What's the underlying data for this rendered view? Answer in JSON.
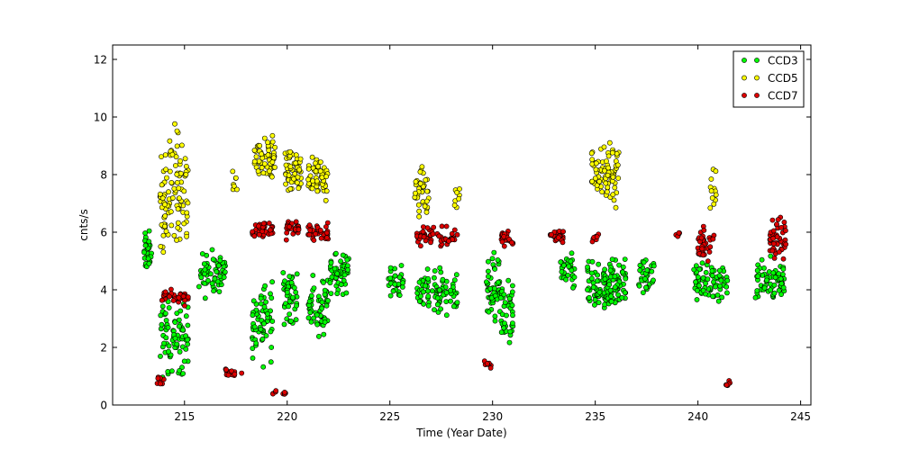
{
  "chart_data": {
    "type": "scatter",
    "xlabel": "Time (Year Date)",
    "ylabel": "cnts/s",
    "xlim": [
      211.5,
      245.5
    ],
    "ylim": [
      0,
      12.5
    ],
    "xticks": [
      215,
      220,
      225,
      230,
      235,
      240,
      245
    ],
    "yticks": [
      0,
      2,
      4,
      6,
      8,
      10,
      12
    ],
    "grid": false,
    "legend_position": "top-right",
    "series": [
      {
        "name": "CCD3",
        "color": "#00ff00",
        "clusters": [
          {
            "x": [
              213.0,
              213.4
            ],
            "y": [
              4.3,
              6.3
            ],
            "density": 1.0
          },
          {
            "x": [
              213.8,
              215.2
            ],
            "y": [
              0.5,
              4.2
            ],
            "density": 0.9
          },
          {
            "x": [
              215.7,
              217.0
            ],
            "y": [
              3.5,
              5.6
            ],
            "density": 1.0
          },
          {
            "x": [
              218.3,
              219.3
            ],
            "y": [
              1.0,
              5.0
            ],
            "density": 0.8
          },
          {
            "x": [
              219.8,
              220.5
            ],
            "y": [
              2.2,
              5.3
            ],
            "density": 0.8
          },
          {
            "x": [
              221.0,
              222.0
            ],
            "y": [
              2.2,
              4.8
            ],
            "density": 0.9
          },
          {
            "x": [
              222.0,
              223.0
            ],
            "y": [
              3.6,
              5.6
            ],
            "density": 1.0
          },
          {
            "x": [
              224.9,
              225.7
            ],
            "y": [
              3.6,
              5.0
            ],
            "density": 0.8
          },
          {
            "x": [
              226.3,
              228.3
            ],
            "y": [
              2.8,
              5.0
            ],
            "density": 1.0
          },
          {
            "x": [
              229.7,
              230.5
            ],
            "y": [
              2.5,
              5.5
            ],
            "density": 0.9
          },
          {
            "x": [
              230.4,
              231.0
            ],
            "y": [
              1.5,
              5.0
            ],
            "density": 0.7
          },
          {
            "x": [
              233.3,
              234.0
            ],
            "y": [
              3.6,
              5.5
            ],
            "density": 0.7
          },
          {
            "x": [
              234.6,
              235.6
            ],
            "y": [
              2.8,
              5.3
            ],
            "density": 1.0
          },
          {
            "x": [
              235.6,
              236.5
            ],
            "y": [
              2.8,
              5.5
            ],
            "density": 1.0
          },
          {
            "x": [
              237.1,
              237.9
            ],
            "y": [
              3.5,
              5.5
            ],
            "density": 0.7
          },
          {
            "x": [
              239.8,
              241.5
            ],
            "y": [
              3.3,
              5.2
            ],
            "density": 1.0
          },
          {
            "x": [
              242.8,
              244.2
            ],
            "y": [
              3.3,
              5.3
            ],
            "density": 1.0
          }
        ]
      },
      {
        "name": "CCD5",
        "color": "#ffff00",
        "clusters": [
          {
            "x": [
              213.8,
              215.2
            ],
            "y": [
              4.5,
              10.2
            ],
            "density": 1.0
          },
          {
            "x": [
              217.3,
              217.6
            ],
            "y": [
              7.0,
              8.3
            ],
            "density": 0.3
          },
          {
            "x": [
              218.4,
              219.4
            ],
            "y": [
              7.5,
              9.8
            ],
            "density": 1.0
          },
          {
            "x": [
              219.9,
              220.7
            ],
            "y": [
              6.9,
              9.5
            ],
            "density": 1.0
          },
          {
            "x": [
              221.0,
              222.0
            ],
            "y": [
              6.8,
              8.9
            ],
            "density": 1.0
          },
          {
            "x": [
              226.2,
              226.9
            ],
            "y": [
              6.1,
              8.6
            ],
            "density": 0.8
          },
          {
            "x": [
              228.1,
              228.4
            ],
            "y": [
              6.5,
              8.0
            ],
            "density": 0.3
          },
          {
            "x": [
              234.8,
              236.2
            ],
            "y": [
              6.5,
              9.7
            ],
            "density": 1.0
          },
          {
            "x": [
              240.6,
              240.9
            ],
            "y": [
              6.2,
              8.4
            ],
            "density": 0.4
          }
        ]
      },
      {
        "name": "CCD7",
        "color": "#dd0000",
        "clusters": [
          {
            "x": [
              213.6,
              214.0
            ],
            "y": [
              0.6,
              1.2
            ],
            "density": 0.5
          },
          {
            "x": [
              213.9,
              215.2
            ],
            "y": [
              3.4,
              4.1
            ],
            "density": 1.0
          },
          {
            "x": [
              217.0,
              217.8
            ],
            "y": [
              0.9,
              1.4
            ],
            "density": 0.6
          },
          {
            "x": [
              218.3,
              219.3
            ],
            "y": [
              5.7,
              6.5
            ],
            "density": 1.0
          },
          {
            "x": [
              219.3,
              220.0
            ],
            "y": [
              0.3,
              0.6
            ],
            "density": 0.5
          },
          {
            "x": [
              219.9,
              220.6
            ],
            "y": [
              5.6,
              6.6
            ],
            "density": 1.0
          },
          {
            "x": [
              221.0,
              222.0
            ],
            "y": [
              5.6,
              6.4
            ],
            "density": 1.0
          },
          {
            "x": [
              226.3,
              228.3
            ],
            "y": [
              5.4,
              6.3
            ],
            "density": 1.0
          },
          {
            "x": [
              229.6,
              230.0
            ],
            "y": [
              1.2,
              1.6
            ],
            "density": 0.5
          },
          {
            "x": [
              230.4,
              231.0
            ],
            "y": [
              5.4,
              6.2
            ],
            "density": 0.9
          },
          {
            "x": [
              232.8,
              233.5
            ],
            "y": [
              5.5,
              6.2
            ],
            "density": 0.9
          },
          {
            "x": [
              234.8,
              235.2
            ],
            "y": [
              5.5,
              6.1
            ],
            "density": 0.5
          },
          {
            "x": [
              238.9,
              239.1
            ],
            "y": [
              5.6,
              6.2
            ],
            "density": 0.3
          },
          {
            "x": [
              240.0,
              240.8
            ],
            "y": [
              4.9,
              6.4
            ],
            "density": 0.9
          },
          {
            "x": [
              241.3,
              241.6
            ],
            "y": [
              0.6,
              0.9
            ],
            "density": 0.4
          },
          {
            "x": [
              243.5,
              244.3
            ],
            "y": [
              4.8,
              6.8
            ],
            "density": 0.9
          }
        ]
      }
    ]
  }
}
